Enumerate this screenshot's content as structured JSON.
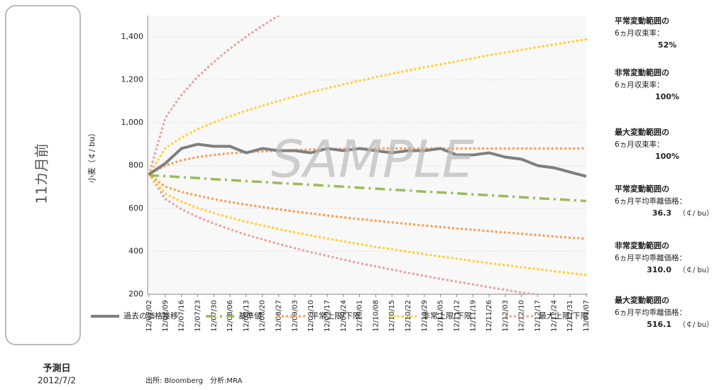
{
  "sidebar": {
    "label": "11カ月前",
    "date_label": "予測日",
    "date": "2012/7/2"
  },
  "chart_data": {
    "type": "line",
    "y_label": "小麦（￠/ bu）",
    "watermark": "SAMPLE",
    "source": "出所: Bloomberg　分析:MRA",
    "x": [
      "12/07/02",
      "12/07/09",
      "12/07/16",
      "12/07/23",
      "12/07/30",
      "12/08/06",
      "12/08/13",
      "12/08/20",
      "12/08/27",
      "12/09/03",
      "12/09/10",
      "12/09/17",
      "12/09/24",
      "12/10/01",
      "12/10/08",
      "12/10/15",
      "12/10/22",
      "12/10/29",
      "12/11/05",
      "12/11/12",
      "12/11/19",
      "12/11/26",
      "12/12/03",
      "12/12/10",
      "12/12/17",
      "12/12/24",
      "12/12/31",
      "13/01/07"
    ],
    "ylim": [
      200,
      1500
    ],
    "yticks": [
      200,
      400,
      600,
      800,
      {
        "value": 1000,
        "label": "1,000"
      },
      {
        "value": 1200,
        "label": "1,200"
      },
      {
        "value": 1400,
        "label": "1,400"
      }
    ],
    "grid": true,
    "series": [
      {
        "name": "過去の価格推移",
        "color": "#7f7f7f",
        "style": "solid",
        "values": [
          760,
          810,
          880,
          900,
          890,
          890,
          860,
          880,
          870,
          870,
          860,
          880,
          870,
          880,
          870,
          860,
          870,
          870,
          880,
          850,
          850,
          860,
          840,
          830,
          800,
          790,
          770,
          750
        ]
      },
      {
        "name": "基準値",
        "color": "#9bbb59",
        "style": "dashdot",
        "values": [
          755,
          751,
          746,
          742,
          737,
          733,
          728,
          724,
          719,
          715,
          711,
          706,
          702,
          697,
          693,
          688,
          684,
          679,
          675,
          671,
          666,
          662,
          657,
          653,
          648,
          644,
          640,
          635
        ]
      },
      {
        "name": "平常上限/下限",
        "color": "#f4a460",
        "style": "dotted",
        "values": [
          760,
          800,
          825,
          840,
          850,
          858,
          863,
          867,
          870,
          873,
          875,
          877,
          879,
          880,
          880,
          880,
          880,
          880,
          880,
          880,
          880,
          880,
          880,
          880,
          880,
          880,
          880,
          880
        ],
        "lower": [
          760,
          702,
          678,
          660,
          644,
          630,
          618,
          607,
          596,
          586,
          577,
          568,
          559,
          551,
          543,
          535,
          528,
          521,
          514,
          507,
          501,
          494,
          488,
          482,
          476,
          470,
          464,
          459
        ]
      },
      {
        "name": "非常上限/下限",
        "color": "#ffd23f",
        "style": "dotted",
        "values": [
          760,
          881,
          931,
          970,
          1002,
          1031,
          1056,
          1080,
          1102,
          1123,
          1143,
          1161,
          1179,
          1196,
          1213,
          1229,
          1244,
          1259,
          1273,
          1287,
          1301,
          1315,
          1328,
          1340,
          1353,
          1365,
          1377,
          1389
        ],
        "lower": [
          760,
          670,
          632,
          603,
          579,
          558,
          538,
          521,
          504,
          489,
          474,
          460,
          447,
          434,
          421,
          410,
          398,
          387,
          376,
          366,
          355,
          345,
          336,
          326,
          317,
          308,
          299,
          290
        ]
      },
      {
        "name": "最大上限/下限",
        "color": "#e6a8a8",
        "style": "dotted",
        "values": [
          760,
          1022,
          1130,
          1214,
          1284,
          1346,
          1402,
          1453,
          1500,
          null,
          null,
          null,
          null,
          null,
          null,
          null,
          null,
          null,
          null,
          null,
          null,
          null,
          null,
          null,
          null,
          null,
          null,
          null
        ],
        "lower": [
          760,
          645,
          597,
          561,
          530,
          503,
          478,
          456,
          435,
          415,
          396,
          379,
          362,
          345,
          330,
          315,
          300,
          286,
          272,
          259,
          246,
          233,
          221,
          208,
          197,
          null,
          null,
          null
        ]
      }
    ]
  },
  "notes": [
    {
      "title": "平常変動範囲の",
      "label": "6ヵ月収束率：",
      "value": "52%"
    },
    {
      "title": "非常変動範囲の",
      "label": "6ヵ月収束率：",
      "value": "100%"
    },
    {
      "title": "最大変動範囲の",
      "label": "6ヵ月収束率：",
      "value": "100%"
    },
    {
      "title": "平常変動範囲の",
      "label": "6ヵ月平均乖離価格：",
      "value": "36.3",
      "unit": "（￠/ bu）"
    },
    {
      "title": "非常変動範囲の",
      "label": "6ヵ月平均乖離価格：",
      "value": "310.0",
      "unit": "（￠/ bu）"
    },
    {
      "title": "最大変動範囲の",
      "label": "6ヵ月平均乖離価格：",
      "value": "516.1",
      "unit": "（￠/ bu）"
    }
  ]
}
